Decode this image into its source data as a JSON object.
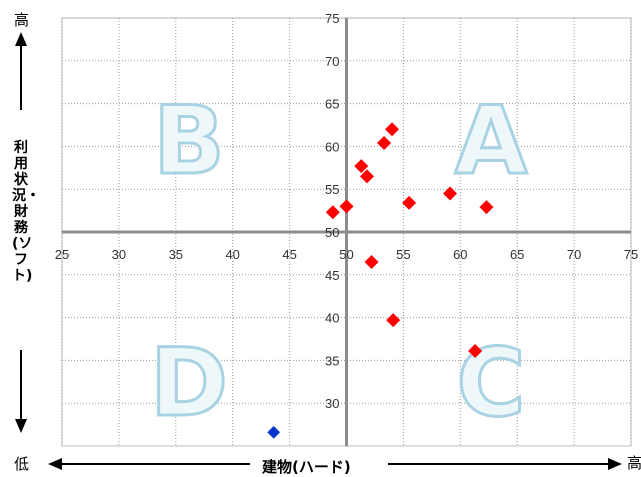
{
  "chart_data": {
    "type": "scatter",
    "x_label": "建物(ハード)",
    "y_label": "利用状況・財務(ソフト)",
    "y_high_label": "高",
    "y_low_label": "低",
    "x_high_label": "高",
    "xlim": [
      25,
      75
    ],
    "ylim": [
      25,
      75
    ],
    "axis_cross": [
      50,
      50
    ],
    "x_ticks": [
      25,
      30,
      35,
      40,
      45,
      50,
      55,
      60,
      65,
      70,
      75
    ],
    "y_ticks": [
      30,
      35,
      40,
      45,
      50,
      55,
      60,
      65,
      70,
      75
    ],
    "grid": "dotted",
    "quadrant_labels": {
      "top_left": "B",
      "top_right": "A",
      "bottom_left": "D",
      "bottom_right": "C"
    },
    "series": [
      {
        "color": "#ff0000",
        "marker": "diamond",
        "points": [
          [
            48.8,
            52.3
          ],
          [
            50.0,
            53.0
          ],
          [
            51.3,
            57.7
          ],
          [
            51.8,
            56.5
          ],
          [
            53.3,
            60.4
          ],
          [
            54.0,
            62.0
          ],
          [
            55.5,
            53.4
          ],
          [
            59.1,
            54.5
          ],
          [
            62.3,
            52.9
          ],
          [
            52.2,
            46.5
          ],
          [
            54.1,
            39.7
          ],
          [
            61.3,
            36.1
          ]
        ]
      },
      {
        "color": "#0033cc",
        "marker": "diamond",
        "points": [
          [
            43.6,
            26.6
          ]
        ]
      }
    ]
  }
}
